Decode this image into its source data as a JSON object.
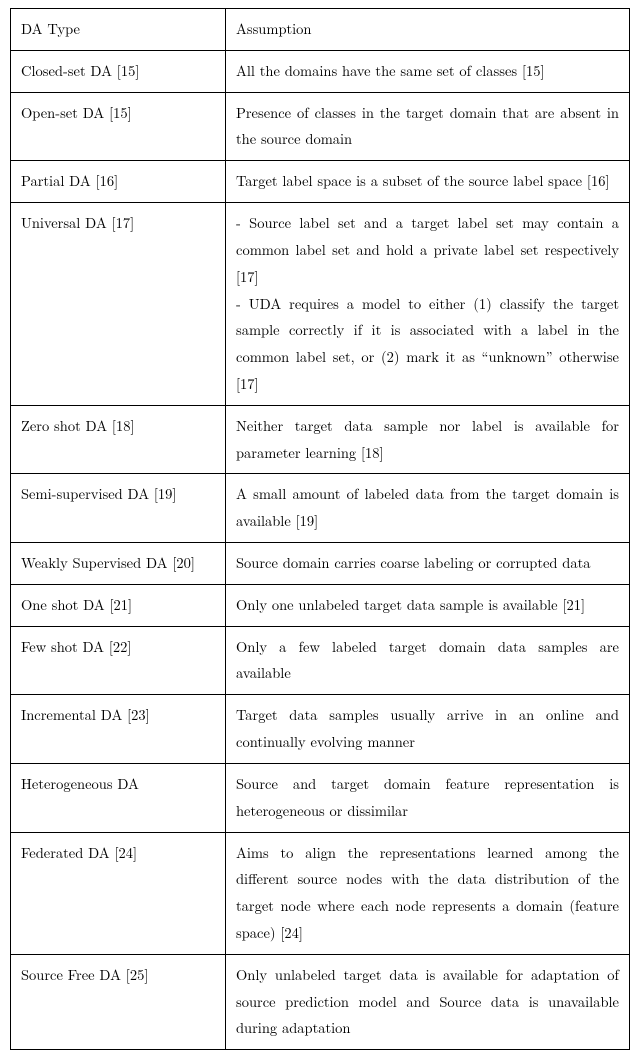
{
  "table": {
    "header": {
      "type": "DA Type",
      "assumption": "Assumption"
    },
    "rows": [
      {
        "type": "Closed-set DA [15]",
        "assumption": "All the domains have the same set of classes [15]"
      },
      {
        "type": "Open-set DA [15]",
        "assumption": "Presence of classes in the target domain that are absent in the source domain"
      },
      {
        "type": "Partial DA [16]",
        "assumption": "Target label space is a subset of the source label space [16]"
      },
      {
        "type": "Universal DA [17]",
        "assumption": "- Source label set and a target label set may contain a common label set and hold a private label set respectively [17]\n- UDA requires a model to either (1) classify the target sample correctly if it is associated with a label in the common label set, or (2) mark it as “unknown” otherwise [17]"
      },
      {
        "type": "Zero shot DA [18]",
        "assumption": "Neither target data sample nor label is available for parameter learning [18]"
      },
      {
        "type": "Semi-supervised DA [19]",
        "assumption": "A small amount of labeled data from the target domain is available [19]"
      },
      {
        "type": "Weakly Supervised DA [20]",
        "assumption": "Source domain carries coarse labeling or corrupted data"
      },
      {
        "type": "One shot DA [21]",
        "assumption": "Only one unlabeled target data sample is available [21]"
      },
      {
        "type": "Few shot DA [22]",
        "assumption": "Only a few labeled target domain data samples are available"
      },
      {
        "type": "Incremental DA [23]",
        "assumption": "Target data samples usually arrive in an online and continually evolving manner"
      },
      {
        "type": "Heterogeneous DA",
        "assumption": "Source and target domain feature representation is heterogeneous or dissimilar"
      },
      {
        "type": "Federated DA [24]",
        "assumption": "Aims to align the representations learned among the different source nodes with the data distribution of the target node where each node represents a domain (feature space) [24]"
      },
      {
        "type": "Source Free DA [25]",
        "assumption": "Only unlabeled target data is available for adaptation of source prediction model and Source data is unavailable during adaptation"
      }
    ]
  }
}
